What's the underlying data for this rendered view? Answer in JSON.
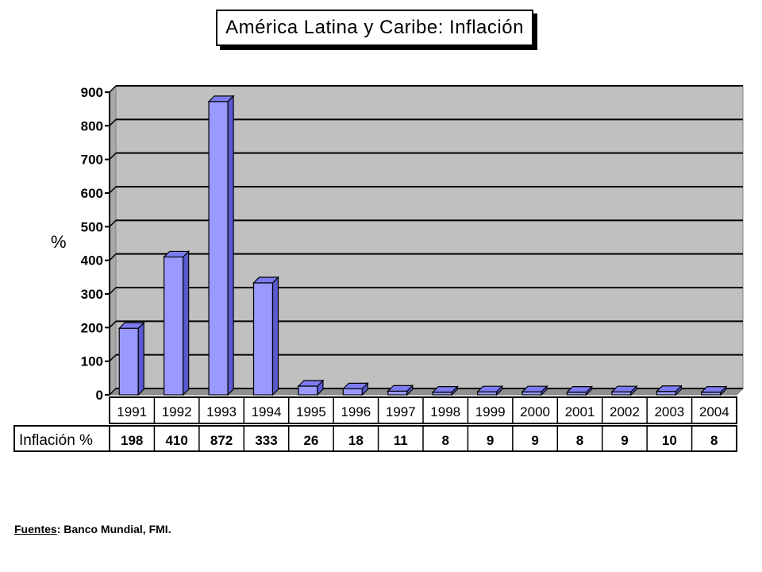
{
  "chart_data": {
    "type": "bar",
    "title": "América Latina y Caribe: Inflación",
    "ylabel": "%",
    "xlabel": "",
    "categories": [
      "1991",
      "1992",
      "1993",
      "1994",
      "1995",
      "1996",
      "1997",
      "1998",
      "1999",
      "2000",
      "2001",
      "2002",
      "2003",
      "2004"
    ],
    "series": [
      {
        "values": [
          198,
          410,
          872,
          333,
          26,
          18,
          11,
          8,
          9,
          9,
          8,
          9,
          10,
          8
        ]
      }
    ],
    "ylim": [
      0,
      900
    ],
    "yticks": [
      0,
      100,
      200,
      300,
      400,
      500,
      600,
      700,
      800,
      900
    ],
    "grid": true,
    "legend": "none",
    "table_row_label": "Inflación %",
    "colors": {
      "plot_background": "#c0c0c0",
      "bar_face": "#9999ff",
      "bar_side": "#5a5ad0",
      "bar_top": "#7c7cf0"
    }
  },
  "source": {
    "label": "Fuentes",
    "text": "Banco Mundial, FMI."
  }
}
